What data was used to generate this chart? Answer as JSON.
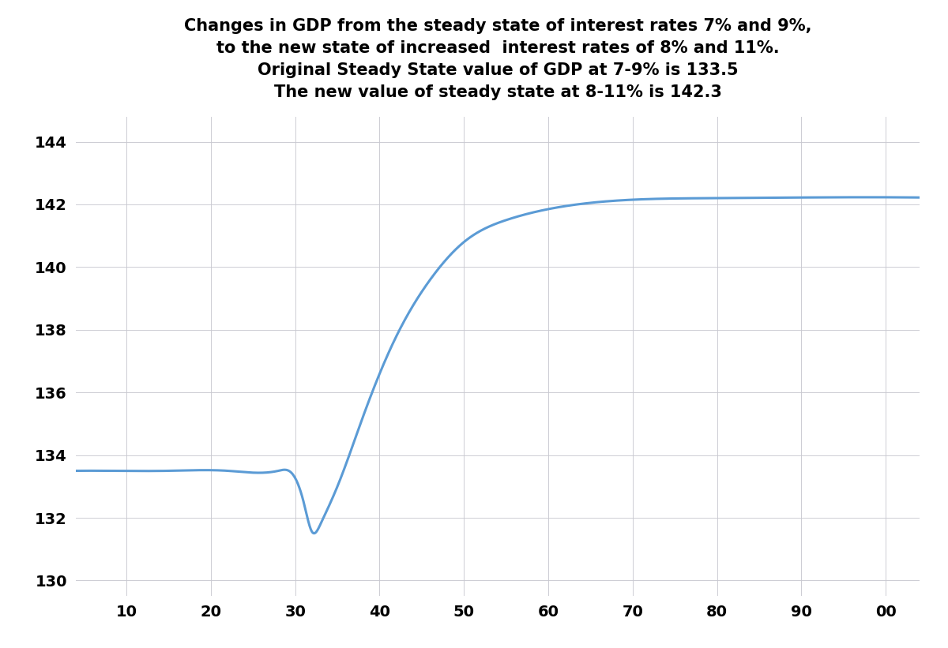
{
  "title_line1": "Changes in GDP from the steady state of interest rates 7% and 9%,",
  "title_line2": "to the new state of increased  interest rates of 8% and 11%.",
  "title_line3": "Original Steady State value of GDP at 7-9% is 133.5",
  "title_line4": "The new value of steady state at 8-11% is 142.3",
  "x_ticks": [
    10,
    20,
    30,
    40,
    50,
    60,
    70,
    80,
    90,
    100
  ],
  "x_tick_labels": [
    "10",
    "20",
    "30",
    "40",
    "50",
    "60",
    "70",
    "80",
    "90",
    "00"
  ],
  "ylim": [
    129.5,
    144.8
  ],
  "xlim": [
    4,
    104
  ],
  "y_ticks": [
    130,
    132,
    134,
    136,
    138,
    140,
    142,
    144
  ],
  "line_color": "#5b9bd5",
  "background_color": "#ffffff",
  "grid_color": "#c8c8d0",
  "title_fontsize": 15,
  "tick_fontsize": 14
}
